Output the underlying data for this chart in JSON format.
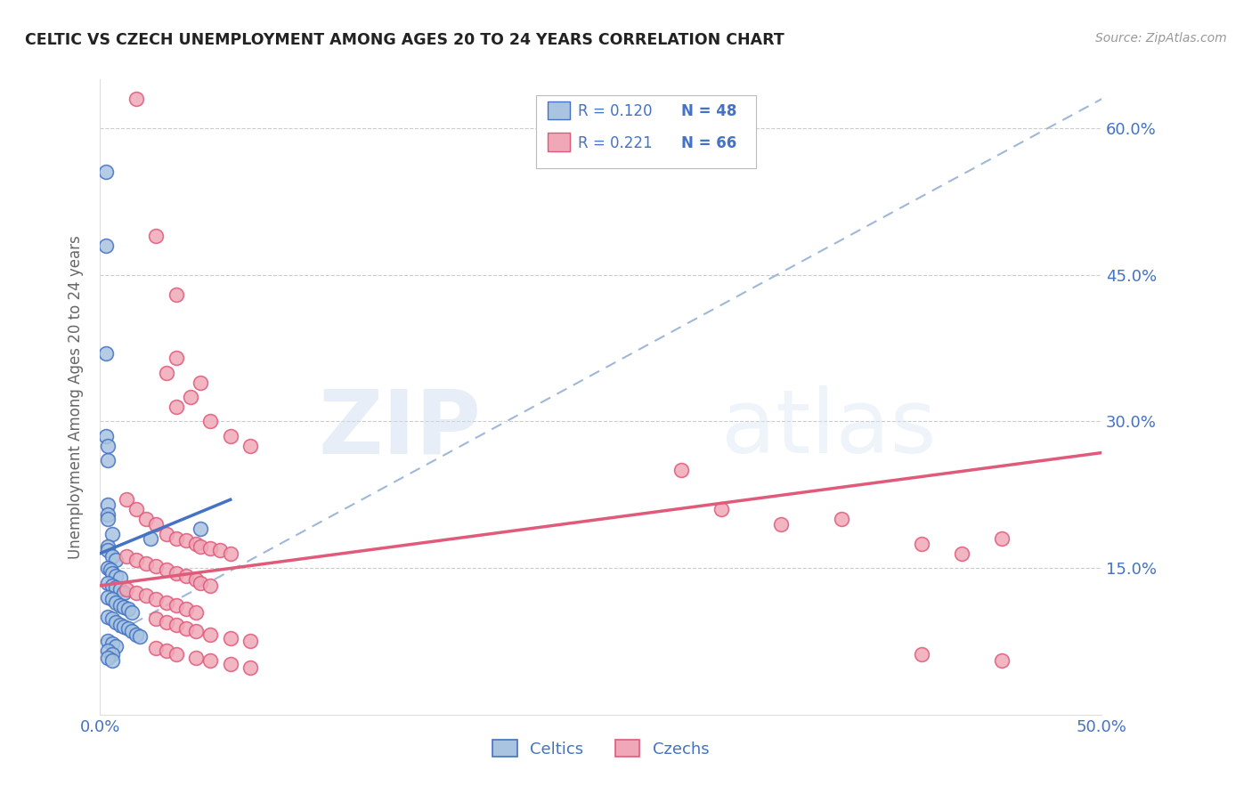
{
  "title": "CELTIC VS CZECH UNEMPLOYMENT AMONG AGES 20 TO 24 YEARS CORRELATION CHART",
  "source": "Source: ZipAtlas.com",
  "ylabel": "Unemployment Among Ages 20 to 24 years",
  "xlim": [
    0.0,
    0.5
  ],
  "ylim": [
    0.0,
    0.65
  ],
  "yticks": [
    0.0,
    0.15,
    0.3,
    0.45,
    0.6
  ],
  "ytick_labels": [
    "",
    "15.0%",
    "30.0%",
    "45.0%",
    "60.0%"
  ],
  "celtics_color": "#a8c4e0",
  "czechs_color": "#f0a8b8",
  "celtics_line_color": "#4472c4",
  "czechs_line_color": "#e05a7a",
  "dashed_line_color": "#a0b8d8",
  "axis_label_color": "#4472c4",
  "celtics_scatter": [
    [
      0.003,
      0.555
    ],
    [
      0.003,
      0.48
    ],
    [
      0.003,
      0.37
    ],
    [
      0.003,
      0.285
    ],
    [
      0.004,
      0.275
    ],
    [
      0.004,
      0.26
    ],
    [
      0.004,
      0.215
    ],
    [
      0.004,
      0.205
    ],
    [
      0.004,
      0.2
    ],
    [
      0.006,
      0.185
    ],
    [
      0.004,
      0.172
    ],
    [
      0.004,
      0.168
    ],
    [
      0.006,
      0.162
    ],
    [
      0.008,
      0.158
    ],
    [
      0.004,
      0.15
    ],
    [
      0.005,
      0.148
    ],
    [
      0.006,
      0.145
    ],
    [
      0.008,
      0.142
    ],
    [
      0.01,
      0.14
    ],
    [
      0.004,
      0.135
    ],
    [
      0.006,
      0.132
    ],
    [
      0.008,
      0.13
    ],
    [
      0.01,
      0.128
    ],
    [
      0.012,
      0.125
    ],
    [
      0.004,
      0.12
    ],
    [
      0.006,
      0.118
    ],
    [
      0.008,
      0.115
    ],
    [
      0.01,
      0.112
    ],
    [
      0.012,
      0.11
    ],
    [
      0.014,
      0.108
    ],
    [
      0.016,
      0.105
    ],
    [
      0.004,
      0.1
    ],
    [
      0.006,
      0.098
    ],
    [
      0.008,
      0.095
    ],
    [
      0.01,
      0.092
    ],
    [
      0.012,
      0.09
    ],
    [
      0.014,
      0.088
    ],
    [
      0.016,
      0.085
    ],
    [
      0.018,
      0.082
    ],
    [
      0.02,
      0.08
    ],
    [
      0.025,
      0.18
    ],
    [
      0.004,
      0.075
    ],
    [
      0.006,
      0.073
    ],
    [
      0.008,
      0.07
    ],
    [
      0.05,
      0.19
    ],
    [
      0.004,
      0.065
    ],
    [
      0.006,
      0.062
    ],
    [
      0.004,
      0.058
    ],
    [
      0.006,
      0.055
    ]
  ],
  "czechs_scatter": [
    [
      0.018,
      0.63
    ],
    [
      0.028,
      0.49
    ],
    [
      0.038,
      0.43
    ],
    [
      0.038,
      0.365
    ],
    [
      0.033,
      0.35
    ],
    [
      0.05,
      0.34
    ],
    [
      0.045,
      0.325
    ],
    [
      0.038,
      0.315
    ],
    [
      0.055,
      0.3
    ],
    [
      0.065,
      0.285
    ],
    [
      0.075,
      0.275
    ],
    [
      0.013,
      0.22
    ],
    [
      0.018,
      0.21
    ],
    [
      0.023,
      0.2
    ],
    [
      0.028,
      0.195
    ],
    [
      0.033,
      0.185
    ],
    [
      0.038,
      0.18
    ],
    [
      0.043,
      0.178
    ],
    [
      0.048,
      0.175
    ],
    [
      0.05,
      0.172
    ],
    [
      0.055,
      0.17
    ],
    [
      0.06,
      0.168
    ],
    [
      0.065,
      0.165
    ],
    [
      0.013,
      0.162
    ],
    [
      0.018,
      0.158
    ],
    [
      0.023,
      0.155
    ],
    [
      0.028,
      0.152
    ],
    [
      0.033,
      0.148
    ],
    [
      0.038,
      0.145
    ],
    [
      0.043,
      0.142
    ],
    [
      0.048,
      0.138
    ],
    [
      0.05,
      0.135
    ],
    [
      0.055,
      0.132
    ],
    [
      0.013,
      0.128
    ],
    [
      0.018,
      0.125
    ],
    [
      0.023,
      0.122
    ],
    [
      0.028,
      0.118
    ],
    [
      0.033,
      0.115
    ],
    [
      0.038,
      0.112
    ],
    [
      0.043,
      0.108
    ],
    [
      0.048,
      0.105
    ],
    [
      0.028,
      0.098
    ],
    [
      0.033,
      0.095
    ],
    [
      0.038,
      0.092
    ],
    [
      0.043,
      0.088
    ],
    [
      0.048,
      0.085
    ],
    [
      0.055,
      0.082
    ],
    [
      0.065,
      0.078
    ],
    [
      0.075,
      0.075
    ],
    [
      0.028,
      0.068
    ],
    [
      0.033,
      0.065
    ],
    [
      0.038,
      0.062
    ],
    [
      0.048,
      0.058
    ],
    [
      0.055,
      0.055
    ],
    [
      0.065,
      0.052
    ],
    [
      0.075,
      0.048
    ],
    [
      0.29,
      0.25
    ],
    [
      0.31,
      0.21
    ],
    [
      0.34,
      0.195
    ],
    [
      0.37,
      0.2
    ],
    [
      0.41,
      0.175
    ],
    [
      0.43,
      0.165
    ],
    [
      0.45,
      0.18
    ],
    [
      0.41,
      0.062
    ],
    [
      0.45,
      0.055
    ]
  ],
  "celtics_trendline": [
    [
      0.0,
      0.165
    ],
    [
      0.065,
      0.22
    ]
  ],
  "czechs_trendline": [
    [
      0.0,
      0.132
    ],
    [
      0.5,
      0.268
    ]
  ],
  "dashed_trendline": [
    [
      0.0,
      0.075
    ],
    [
      0.5,
      0.63
    ]
  ]
}
